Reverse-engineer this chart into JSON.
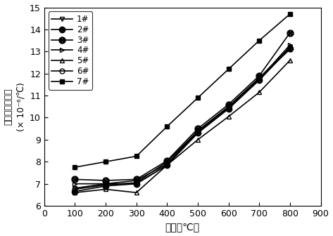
{
  "x": [
    100,
    200,
    300,
    400,
    500,
    600,
    700,
    800
  ],
  "series": [
    {
      "label": "1#",
      "marker": "v",
      "fillstyle": "none",
      "y": [
        6.8,
        7.0,
        7.15,
        7.9,
        9.4,
        10.5,
        11.8,
        13.2
      ]
    },
    {
      "label": "2#",
      "marker": "oplus",
      "fillstyle": "none",
      "y": [
        6.65,
        6.9,
        7.0,
        7.85,
        9.3,
        10.4,
        11.7,
        13.15
      ]
    },
    {
      "label": "3#",
      "marker": "x_circle",
      "fillstyle": "none",
      "y": [
        7.2,
        7.15,
        7.2,
        8.05,
        9.5,
        10.6,
        11.9,
        13.85
      ]
    },
    {
      "label": "4#",
      "marker": ">",
      "fillstyle": "none",
      "y": [
        7.0,
        7.0,
        7.0,
        7.85,
        9.35,
        10.45,
        11.75,
        13.3
      ]
    },
    {
      "label": "5#",
      "marker": "^",
      "fillstyle": "none",
      "y": [
        6.6,
        6.75,
        6.6,
        7.85,
        9.0,
        10.05,
        11.15,
        12.6
      ]
    },
    {
      "label": "6#",
      "marker": "o",
      "fillstyle": "none",
      "y": [
        6.75,
        6.95,
        7.05,
        8.0,
        9.4,
        10.5,
        11.8,
        13.1
      ]
    },
    {
      "label": "7#",
      "marker": "s",
      "fillstyle": "full",
      "y": [
        7.75,
        8.0,
        8.25,
        9.6,
        10.9,
        12.2,
        13.5,
        14.7
      ]
    }
  ],
  "xlabel": "温度（℃）",
  "ylabel_line1": "平均线膨胀系数",
  "ylabel_line2": "(× 10⁻⁶/℃)",
  "xlim": [
    0,
    900
  ],
  "ylim": [
    6,
    15
  ],
  "xticks": [
    0,
    100,
    200,
    300,
    400,
    500,
    600,
    700,
    800,
    900
  ],
  "yticks": [
    6,
    7,
    8,
    9,
    10,
    11,
    12,
    13,
    14,
    15
  ],
  "linecolor": "black",
  "linewidth": 1.2,
  "markersize": 5,
  "fontsize_label": 10,
  "fontsize_tick": 9,
  "fontsize_legend": 8.5
}
